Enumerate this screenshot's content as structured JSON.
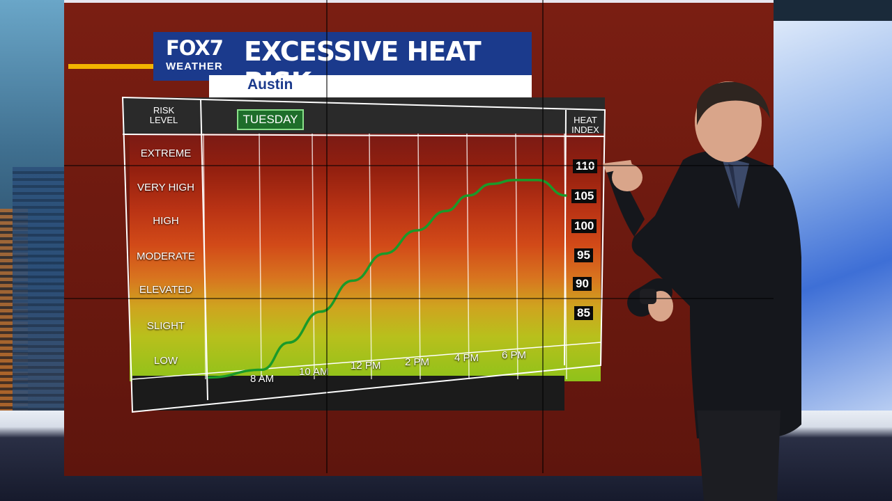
{
  "branding": {
    "logo_top": "FOX",
    "logo_number": "7",
    "logo_bottom": "WEATHER"
  },
  "banner": {
    "title": "EXCESSIVE HEAT RISK",
    "location": "Austin"
  },
  "day": "TUESDAY",
  "headers": {
    "risk_level": [
      "RISK",
      "LEVEL"
    ],
    "heat_index": [
      "HEAT",
      "INDEX"
    ]
  },
  "risk_levels": [
    "EXTREME",
    "VERY HIGH",
    "HIGH",
    "MODERATE",
    "ELEVATED",
    "SLIGHT",
    "LOW"
  ],
  "colors": {
    "extreme": "#7a1a14",
    "very_high": "#9e2416",
    "high": "#c53a16",
    "moderate": "#d9541a",
    "elevated": "#d87a22",
    "slight": "#c9b21e",
    "low": "#9cc41c",
    "curve": "#1a9a2a",
    "banner_blue": "#1b3a8c"
  },
  "chart_data": {
    "type": "line",
    "title": "EXCESSIVE HEAT RISK",
    "x_ticks": [
      "8 AM",
      "10 AM",
      "12 PM",
      "2 PM",
      "4 PM",
      "6 PM"
    ],
    "y_ticks": [
      85,
      90,
      95,
      100,
      105,
      110
    ],
    "ylabel": "HEAT INDEX",
    "ylim": [
      80,
      112
    ],
    "series": [
      {
        "x": [
          "7 AM",
          "8 AM",
          "9 AM",
          "10 AM",
          "11 AM",
          "12 PM",
          "1 PM",
          "2 PM",
          "3 PM",
          "4 PM",
          "5 PM",
          "6 PM",
          "7 PM"
        ],
        "values": [
          80.5,
          81.5,
          85,
          89,
          93,
          96.5,
          99.5,
          102,
          104,
          105.5,
          106,
          106,
          104
        ]
      }
    ]
  }
}
